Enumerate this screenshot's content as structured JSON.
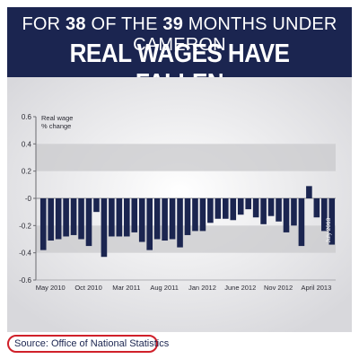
{
  "header": {
    "line1_a": "FOR ",
    "line1_b": "38",
    "line1_c": " OF THE ",
    "line1_d": "39",
    "line1_e": " MONTHS UNDER CAMERON",
    "line2": "REAL WAGES HAVE FALLEN"
  },
  "source": "Source: Office of National Statistics",
  "colors": {
    "bars": "#1b2550",
    "band": "#c9c9cc",
    "header_bg": "#1b2550",
    "source_outline": "#d0202a"
  },
  "chart_data": {
    "type": "bar",
    "ylabel": "Real wage\n% change",
    "ylim": [
      -0.6,
      0.6
    ],
    "yticks": [
      -0.6,
      -0.4,
      -0.2,
      0,
      0.2,
      0.4,
      0.6
    ],
    "ytick_labels": [
      "-0.6",
      "-0.4",
      "-0.2",
      "-0",
      "0.2",
      "0.4",
      "0.6"
    ],
    "xtick_labels": [
      {
        "index": 0,
        "label": "May 2010"
      },
      {
        "index": 5,
        "label": "Oct 2010"
      },
      {
        "index": 10,
        "label": "Mar 2011"
      },
      {
        "index": 15,
        "label": "Aug 2011"
      },
      {
        "index": 20,
        "label": "Jan 2012"
      },
      {
        "index": 25,
        "label": "June 2012"
      },
      {
        "index": 30,
        "label": "Nov 2012"
      },
      {
        "index": 35,
        "label": "April 2013"
      }
    ],
    "annotation": {
      "index": 38,
      "text": "July 2013"
    },
    "values": [
      -0.38,
      -0.31,
      -0.3,
      -0.28,
      -0.27,
      -0.3,
      -0.35,
      -0.1,
      -0.43,
      -0.28,
      -0.28,
      -0.28,
      -0.25,
      -0.32,
      -0.38,
      -0.3,
      -0.31,
      -0.3,
      -0.36,
      -0.27,
      -0.24,
      -0.24,
      -0.18,
      -0.15,
      -0.15,
      -0.16,
      -0.12,
      -0.08,
      -0.14,
      -0.19,
      -0.13,
      -0.17,
      -0.25,
      -0.2,
      -0.35,
      0.09,
      -0.14,
      -0.24,
      -0.34
    ]
  }
}
